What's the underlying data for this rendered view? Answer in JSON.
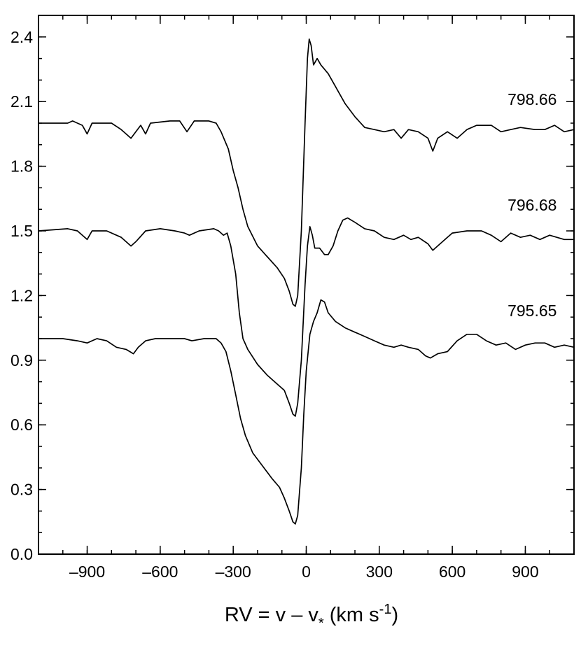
{
  "chart_data": {
    "type": "line",
    "title": "",
    "xlabel": {
      "main": "RV = v – v",
      "subscript": "*",
      "unit_open": " (km s",
      "unit_sup": "-1",
      "unit_close": ")"
    },
    "ylabel": "",
    "xlim": [
      -1100,
      1100
    ],
    "ylim": [
      0.0,
      2.5
    ],
    "x_ticks": [
      -900,
      -600,
      -300,
      0,
      300,
      600,
      900
    ],
    "x_tick_labels": [
      "–900",
      "–600",
      "–300",
      "0",
      "300",
      "600",
      "900"
    ],
    "y_ticks": [
      0.0,
      0.3,
      0.6,
      0.9,
      1.2,
      1.5,
      1.8,
      2.1,
      2.4
    ],
    "y_tick_labels": [
      "0.0",
      "0.3",
      "0.6",
      "0.9",
      "1.2",
      "1.5",
      "1.8",
      "2.1",
      "2.4"
    ],
    "grid": false,
    "series": [
      {
        "name": "798.66",
        "label_x": 900,
        "label_y": 2.11,
        "points": [
          [
            -1100,
            2.0
          ],
          [
            -980,
            2.0
          ],
          [
            -960,
            2.01
          ],
          [
            -920,
            1.99
          ],
          [
            -900,
            1.95
          ],
          [
            -880,
            2.0
          ],
          [
            -800,
            2.0
          ],
          [
            -760,
            1.97
          ],
          [
            -720,
            1.93
          ],
          [
            -700,
            1.96
          ],
          [
            -680,
            1.99
          ],
          [
            -660,
            1.95
          ],
          [
            -640,
            2.0
          ],
          [
            -560,
            2.01
          ],
          [
            -520,
            2.01
          ],
          [
            -490,
            1.96
          ],
          [
            -460,
            2.01
          ],
          [
            -400,
            2.01
          ],
          [
            -370,
            2.0
          ],
          [
            -350,
            1.96
          ],
          [
            -320,
            1.88
          ],
          [
            -300,
            1.78
          ],
          [
            -280,
            1.7
          ],
          [
            -260,
            1.6
          ],
          [
            -240,
            1.52
          ],
          [
            -200,
            1.43
          ],
          [
            -160,
            1.38
          ],
          [
            -120,
            1.33
          ],
          [
            -90,
            1.28
          ],
          [
            -70,
            1.22
          ],
          [
            -55,
            1.16
          ],
          [
            -45,
            1.15
          ],
          [
            -35,
            1.2
          ],
          [
            -20,
            1.5
          ],
          [
            -5,
            2.0
          ],
          [
            5,
            2.3
          ],
          [
            12,
            2.39
          ],
          [
            20,
            2.36
          ],
          [
            30,
            2.27
          ],
          [
            45,
            2.3
          ],
          [
            60,
            2.27
          ],
          [
            90,
            2.23
          ],
          [
            120,
            2.17
          ],
          [
            160,
            2.09
          ],
          [
            200,
            2.03
          ],
          [
            240,
            1.98
          ],
          [
            280,
            1.97
          ],
          [
            320,
            1.96
          ],
          [
            360,
            1.97
          ],
          [
            390,
            1.93
          ],
          [
            420,
            1.97
          ],
          [
            460,
            1.96
          ],
          [
            500,
            1.93
          ],
          [
            520,
            1.87
          ],
          [
            540,
            1.93
          ],
          [
            580,
            1.96
          ],
          [
            620,
            1.93
          ],
          [
            660,
            1.97
          ],
          [
            700,
            1.99
          ],
          [
            760,
            1.99
          ],
          [
            800,
            1.96
          ],
          [
            840,
            1.97
          ],
          [
            880,
            1.98
          ],
          [
            940,
            1.97
          ],
          [
            980,
            1.97
          ],
          [
            1020,
            1.99
          ],
          [
            1060,
            1.96
          ],
          [
            1100,
            1.97
          ]
        ]
      },
      {
        "name": "796.68",
        "label_x": 900,
        "label_y": 1.62,
        "points": [
          [
            -1100,
            1.5
          ],
          [
            -980,
            1.51
          ],
          [
            -940,
            1.5
          ],
          [
            -900,
            1.46
          ],
          [
            -880,
            1.5
          ],
          [
            -820,
            1.5
          ],
          [
            -760,
            1.47
          ],
          [
            -720,
            1.43
          ],
          [
            -700,
            1.45
          ],
          [
            -660,
            1.5
          ],
          [
            -600,
            1.51
          ],
          [
            -540,
            1.5
          ],
          [
            -500,
            1.49
          ],
          [
            -480,
            1.48
          ],
          [
            -440,
            1.5
          ],
          [
            -380,
            1.51
          ],
          [
            -360,
            1.5
          ],
          [
            -340,
            1.48
          ],
          [
            -325,
            1.49
          ],
          [
            -310,
            1.43
          ],
          [
            -290,
            1.3
          ],
          [
            -275,
            1.12
          ],
          [
            -260,
            1.0
          ],
          [
            -240,
            0.95
          ],
          [
            -200,
            0.88
          ],
          [
            -160,
            0.83
          ],
          [
            -120,
            0.79
          ],
          [
            -90,
            0.76
          ],
          [
            -70,
            0.7
          ],
          [
            -55,
            0.65
          ],
          [
            -45,
            0.64
          ],
          [
            -35,
            0.7
          ],
          [
            -20,
            0.9
          ],
          [
            -5,
            1.25
          ],
          [
            5,
            1.43
          ],
          [
            15,
            1.52
          ],
          [
            25,
            1.48
          ],
          [
            35,
            1.42
          ],
          [
            55,
            1.42
          ],
          [
            75,
            1.39
          ],
          [
            90,
            1.39
          ],
          [
            110,
            1.43
          ],
          [
            130,
            1.5
          ],
          [
            150,
            1.55
          ],
          [
            170,
            1.56
          ],
          [
            200,
            1.54
          ],
          [
            240,
            1.51
          ],
          [
            280,
            1.5
          ],
          [
            320,
            1.47
          ],
          [
            360,
            1.46
          ],
          [
            400,
            1.48
          ],
          [
            430,
            1.46
          ],
          [
            460,
            1.47
          ],
          [
            500,
            1.44
          ],
          [
            520,
            1.41
          ],
          [
            560,
            1.45
          ],
          [
            600,
            1.49
          ],
          [
            660,
            1.5
          ],
          [
            720,
            1.5
          ],
          [
            760,
            1.48
          ],
          [
            800,
            1.45
          ],
          [
            840,
            1.49
          ],
          [
            880,
            1.47
          ],
          [
            920,
            1.48
          ],
          [
            960,
            1.46
          ],
          [
            1000,
            1.48
          ],
          [
            1060,
            1.46
          ],
          [
            1100,
            1.46
          ]
        ]
      },
      {
        "name": "795.65",
        "label_x": 900,
        "label_y": 1.13,
        "points": [
          [
            -1100,
            1.0
          ],
          [
            -1000,
            1.0
          ],
          [
            -940,
            0.99
          ],
          [
            -900,
            0.98
          ],
          [
            -860,
            1.0
          ],
          [
            -820,
            0.99
          ],
          [
            -780,
            0.96
          ],
          [
            -740,
            0.95
          ],
          [
            -710,
            0.93
          ],
          [
            -690,
            0.96
          ],
          [
            -660,
            0.99
          ],
          [
            -620,
            1.0
          ],
          [
            -580,
            1.0
          ],
          [
            -540,
            1.0
          ],
          [
            -500,
            1.0
          ],
          [
            -470,
            0.99
          ],
          [
            -420,
            1.0
          ],
          [
            -370,
            1.0
          ],
          [
            -350,
            0.98
          ],
          [
            -330,
            0.94
          ],
          [
            -310,
            0.85
          ],
          [
            -290,
            0.74
          ],
          [
            -270,
            0.63
          ],
          [
            -250,
            0.55
          ],
          [
            -220,
            0.47
          ],
          [
            -180,
            0.41
          ],
          [
            -140,
            0.35
          ],
          [
            -110,
            0.31
          ],
          [
            -90,
            0.26
          ],
          [
            -70,
            0.2
          ],
          [
            -55,
            0.15
          ],
          [
            -45,
            0.14
          ],
          [
            -35,
            0.18
          ],
          [
            -20,
            0.4
          ],
          [
            -10,
            0.65
          ],
          [
            0,
            0.85
          ],
          [
            15,
            1.02
          ],
          [
            30,
            1.08
          ],
          [
            45,
            1.12
          ],
          [
            60,
            1.18
          ],
          [
            75,
            1.17
          ],
          [
            90,
            1.12
          ],
          [
            120,
            1.08
          ],
          [
            160,
            1.05
          ],
          [
            200,
            1.03
          ],
          [
            240,
            1.01
          ],
          [
            280,
            0.99
          ],
          [
            320,
            0.97
          ],
          [
            360,
            0.96
          ],
          [
            390,
            0.97
          ],
          [
            420,
            0.96
          ],
          [
            460,
            0.95
          ],
          [
            490,
            0.92
          ],
          [
            510,
            0.91
          ],
          [
            540,
            0.93
          ],
          [
            580,
            0.94
          ],
          [
            620,
            0.99
          ],
          [
            660,
            1.02
          ],
          [
            700,
            1.02
          ],
          [
            740,
            0.99
          ],
          [
            780,
            0.97
          ],
          [
            820,
            0.98
          ],
          [
            860,
            0.95
          ],
          [
            900,
            0.97
          ],
          [
            940,
            0.98
          ],
          [
            980,
            0.98
          ],
          [
            1020,
            0.96
          ],
          [
            1060,
            0.97
          ],
          [
            1100,
            0.96
          ]
        ]
      }
    ]
  }
}
